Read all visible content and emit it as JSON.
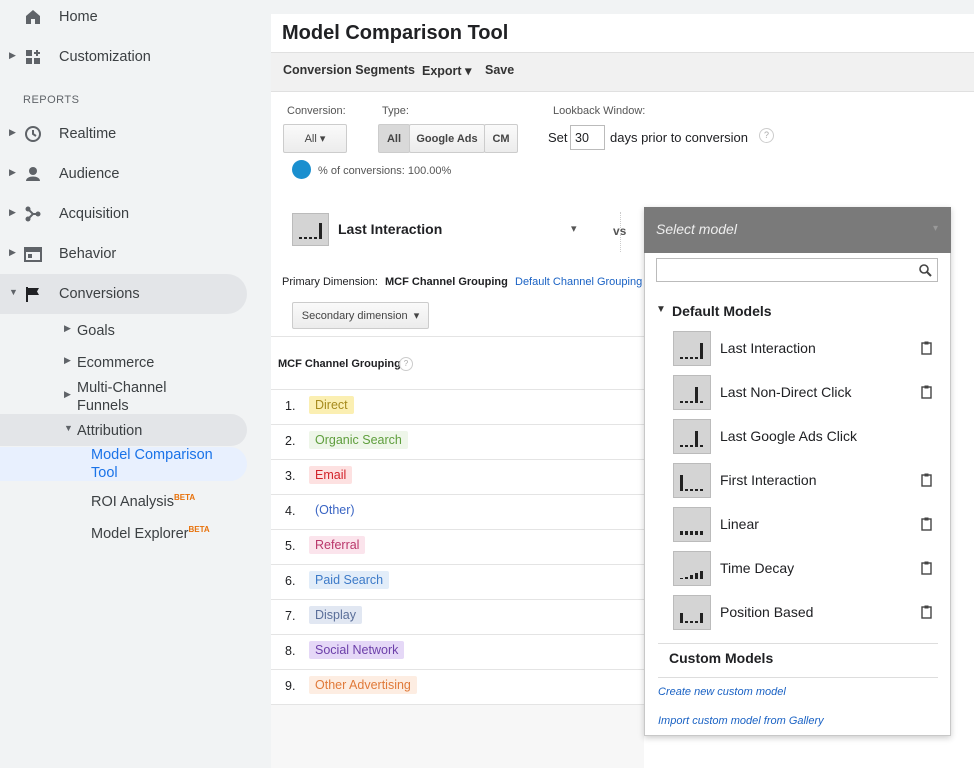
{
  "sidebar": {
    "top_items": [
      "Home",
      "Customization"
    ],
    "section_label": "REPORTS",
    "reports": [
      "Realtime",
      "Audience",
      "Acquisition",
      "Behavior",
      "Conversions"
    ],
    "conversions_children": [
      "Goals",
      "Ecommerce",
      "Multi-Channel Funnels",
      "Attribution"
    ],
    "attribution_children": [
      {
        "label": "Model Comparison Tool"
      },
      {
        "label": "ROI Analysis",
        "badge": "BETA"
      },
      {
        "label": "Model Explorer",
        "badge": "BETA"
      }
    ]
  },
  "header": {
    "title": "Model Comparison Tool"
  },
  "toolbar": [
    "Conversion Segments",
    "Export",
    "Save"
  ],
  "filters": {
    "conversion_label": "Conversion:",
    "conversion_value": "All",
    "type_label": "Type:",
    "type_options": [
      "All",
      "Google Ads",
      "CM"
    ],
    "lookback_label": "Lookback Window:",
    "lookback_prefix": "Set",
    "lookback_days": 30,
    "lookback_suffix": "days prior to conversion",
    "help": "?"
  },
  "conversions_share": "% of conversions: 100.00%",
  "model_compare": {
    "primary_model": "Last Interaction",
    "vs": "vs",
    "placeholder": "Select model"
  },
  "dimension": {
    "label": "Primary Dimension:",
    "active": "MCF Channel Grouping",
    "option": "Default Channel Grouping",
    "secondary": "Secondary dimension"
  },
  "table": {
    "header": "MCF Channel Grouping",
    "help": "?",
    "rows": [
      {
        "index": "1.",
        "channel": "Direct"
      },
      {
        "index": "2.",
        "channel": "Organic Search"
      },
      {
        "index": "3.",
        "channel": "Email"
      },
      {
        "index": "4.",
        "channel": "(Other)"
      },
      {
        "index": "5.",
        "channel": "Referral"
      },
      {
        "index": "6.",
        "channel": "Paid Search"
      },
      {
        "index": "7.",
        "channel": "Display"
      },
      {
        "index": "8.",
        "channel": "Social Network"
      },
      {
        "index": "9.",
        "channel": "Other Advertising"
      }
    ]
  },
  "model_menu": {
    "section": "Default Models",
    "models": [
      "Last Interaction",
      "Last Non-Direct Click",
      "Last Google Ads Click",
      "First Interaction",
      "Linear",
      "Time Decay",
      "Position Based"
    ],
    "custom_section": "Custom Models",
    "links": [
      "Create new custom model",
      "Import custom model from Gallery"
    ]
  }
}
